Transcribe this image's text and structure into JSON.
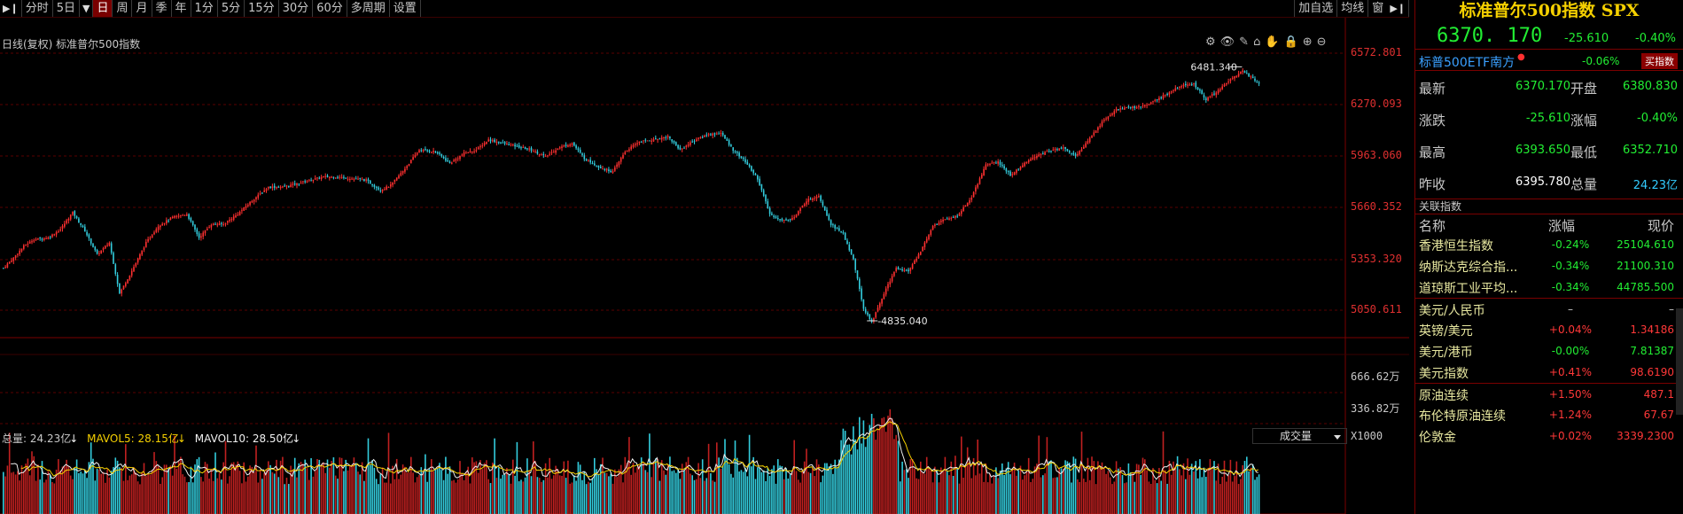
{
  "toolbar": {
    "left_items": [
      "分时",
      "5日",
      "日",
      "周",
      "月",
      "季",
      "年",
      "1分",
      "5分",
      "15分",
      "30分",
      "60分",
      "多周期",
      "设置"
    ],
    "active_item": "日",
    "right_items": [
      "加自选",
      "均线",
      "窗"
    ]
  },
  "chart": {
    "title": "日线(复权)  标准普尔500指数",
    "price_axis": [
      "6572.801",
      "6270.093",
      "5963.060",
      "5660.352",
      "5353.320",
      "5050.611"
    ],
    "high_marker": "6481.340",
    "low_marker": "4835.040",
    "volume_axis": [
      "666.62万",
      "336.82万"
    ],
    "volume_unit": "X1000",
    "volume_selector": "成交量",
    "volume_legend": {
      "total": "总量: 24.23亿",
      "mavol5": "MAVOL5: 28.15亿",
      "mavol10": "MAVOL10: 28.50亿"
    },
    "colors": {
      "up": "#ff3030",
      "down": "#33ccdd",
      "grid": "#5a0000",
      "ma5": "#f0f0f0",
      "ma10": "#f5d000"
    }
  },
  "chart_data": {
    "type": "candlestick",
    "title": "标准普尔500指数",
    "y_range": [
      4835.04,
      6481.34
    ],
    "price_keypoints": [
      [
        0,
        5300
      ],
      [
        5,
        5360
      ],
      [
        10,
        5430
      ],
      [
        15,
        5470
      ],
      [
        22,
        5480
      ],
      [
        28,
        5530
      ],
      [
        34,
        5630
      ],
      [
        40,
        5520
      ],
      [
        46,
        5380
      ],
      [
        52,
        5450
      ],
      [
        57,
        5150
      ],
      [
        62,
        5260
      ],
      [
        70,
        5450
      ],
      [
        76,
        5550
      ],
      [
        83,
        5600
      ],
      [
        90,
        5620
      ],
      [
        96,
        5480
      ],
      [
        102,
        5560
      ],
      [
        108,
        5560
      ],
      [
        115,
        5620
      ],
      [
        122,
        5700
      ],
      [
        130,
        5780
      ],
      [
        137,
        5780
      ],
      [
        144,
        5800
      ],
      [
        150,
        5820
      ],
      [
        157,
        5840
      ],
      [
        164,
        5840
      ],
      [
        171,
        5830
      ],
      [
        178,
        5820
      ],
      [
        185,
        5760
      ],
      [
        190,
        5790
      ],
      [
        197,
        5890
      ],
      [
        204,
        6000
      ],
      [
        212,
        5990
      ],
      [
        219,
        5920
      ],
      [
        226,
        5980
      ],
      [
        232,
        6000
      ],
      [
        238,
        6060
      ],
      [
        245,
        6040
      ],
      [
        252,
        6020
      ],
      [
        259,
        6000
      ],
      [
        266,
        5960
      ],
      [
        272,
        6010
      ],
      [
        279,
        6040
      ],
      [
        285,
        5950
      ],
      [
        292,
        5900
      ],
      [
        299,
        5870
      ],
      [
        305,
        5990
      ],
      [
        312,
        6050
      ],
      [
        319,
        6060
      ],
      [
        326,
        6080
      ],
      [
        332,
        6000
      ],
      [
        338,
        6050
      ],
      [
        345,
        6090
      ],
      [
        352,
        6100
      ],
      [
        358,
        6000
      ],
      [
        364,
        5930
      ],
      [
        370,
        5830
      ],
      [
        376,
        5620
      ],
      [
        382,
        5580
      ],
      [
        388,
        5600
      ],
      [
        394,
        5700
      ],
      [
        400,
        5730
      ],
      [
        406,
        5560
      ],
      [
        412,
        5500
      ],
      [
        417,
        5350
      ],
      [
        422,
        5060
      ],
      [
        426,
        4980
      ],
      [
        432,
        5150
      ],
      [
        438,
        5300
      ],
      [
        444,
        5280
      ],
      [
        450,
        5400
      ],
      [
        456,
        5550
      ],
      [
        462,
        5590
      ],
      [
        468,
        5610
      ],
      [
        475,
        5720
      ],
      [
        482,
        5910
      ],
      [
        488,
        5930
      ],
      [
        494,
        5850
      ],
      [
        500,
        5910
      ],
      [
        506,
        5960
      ],
      [
        512,
        5990
      ],
      [
        520,
        6010
      ],
      [
        526,
        5960
      ],
      [
        532,
        6050
      ],
      [
        540,
        6180
      ],
      [
        546,
        6240
      ],
      [
        553,
        6250
      ],
      [
        560,
        6260
      ],
      [
        566,
        6300
      ],
      [
        572,
        6340
      ],
      [
        578,
        6380
      ],
      [
        584,
        6390
      ],
      [
        590,
        6300
      ],
      [
        596,
        6350
      ],
      [
        602,
        6420
      ],
      [
        608,
        6470
      ],
      [
        612,
        6430
      ],
      [
        616,
        6390
      ]
    ],
    "volume_range_wan": [
      0,
      666.62
    ]
  },
  "panel": {
    "title": "标准普尔500指数 SPX",
    "last": "6370. 170",
    "change": "-25.610",
    "change_pct": "-0.40%",
    "etf": {
      "name": "标普500ETF南方",
      "marker": "●",
      "pct": "-0.06%",
      "button": "买指数"
    },
    "quotes": [
      {
        "l1": "最新",
        "v1": "6370.170",
        "l2": "开盘",
        "v2": "6380.830"
      },
      {
        "l1": "涨跌",
        "v1": "-25.610",
        "l2": "涨幅",
        "v2": "-0.40%"
      },
      {
        "l1": "最高",
        "v1": "6393.650",
        "l2": "最低",
        "v2": "6352.710"
      },
      {
        "l1": "昨收",
        "v1": "6395.780",
        "l2": "总量",
        "v2": "24.23亿"
      }
    ],
    "related": {
      "title": "关联指数",
      "headers": [
        "名称",
        "涨幅",
        "现价"
      ],
      "rows": [
        {
          "name": "香港恒生指数",
          "pct": "-0.24%",
          "price": "25104.610",
          "dir": "down"
        },
        {
          "name": "纳斯达克综合指...",
          "pct": "-0.34%",
          "price": "21100.310",
          "dir": "down"
        },
        {
          "name": "道琼斯工业平均...",
          "pct": "-0.34%",
          "price": "44785.500",
          "dir": "down"
        },
        {
          "name": "美元/人民币",
          "pct": "–",
          "price": "–",
          "dir": "flat",
          "sep": true
        },
        {
          "name": "英镑/美元",
          "pct": "+0.04%",
          "price": "1.34186",
          "dir": "up"
        },
        {
          "name": "美元/港币",
          "pct": "-0.00%",
          "price": "7.81387",
          "dir": "down"
        },
        {
          "name": "美元指数",
          "pct": "+0.41%",
          "price": "98.6190",
          "dir": "up"
        },
        {
          "name": "原油连续",
          "pct": "+1.50%",
          "price": "487.1",
          "dir": "up",
          "sep": true
        },
        {
          "name": "布伦特原油连续",
          "pct": "+1.24%",
          "price": "67.67",
          "dir": "up"
        },
        {
          "name": "伦敦金",
          "pct": "+0.02%",
          "price": "3339.2300",
          "dir": "up"
        }
      ]
    }
  }
}
